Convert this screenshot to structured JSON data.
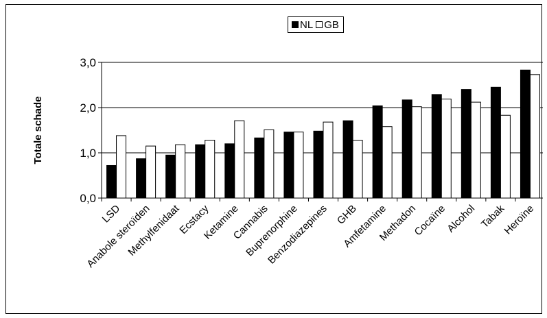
{
  "chart_data": {
    "type": "bar",
    "title": "",
    "xlabel": "",
    "ylabel": "Totale schade",
    "ylim": [
      0,
      3.0
    ],
    "yticks": [
      "0,0",
      "1,0",
      "2,0",
      "3,0"
    ],
    "categories": [
      "LSD",
      "Anabole steroïden",
      "Methylfenidaat",
      "Ecstacy",
      "Ketamine",
      "Cannabis",
      "Buprenorphine",
      "Benzodiazepines",
      "GHB",
      "Amfetamine",
      "Methadon",
      "Cocaïne",
      "Alcohol",
      "Tabak",
      "Heroïne"
    ],
    "series": [
      {
        "name": "NL",
        "color": "#000000",
        "values": [
          0.72,
          0.87,
          0.95,
          1.18,
          1.2,
          1.33,
          1.46,
          1.48,
          1.71,
          2.04,
          2.17,
          2.29,
          2.4,
          2.45,
          2.83
        ]
      },
      {
        "name": "GB",
        "color": "#ffffff",
        "values": [
          1.38,
          1.15,
          1.18,
          1.28,
          1.71,
          1.51,
          1.46,
          1.68,
          1.28,
          1.58,
          2.02,
          2.19,
          2.12,
          1.83,
          2.73
        ]
      }
    ],
    "grid": true,
    "legend_position": "top"
  }
}
